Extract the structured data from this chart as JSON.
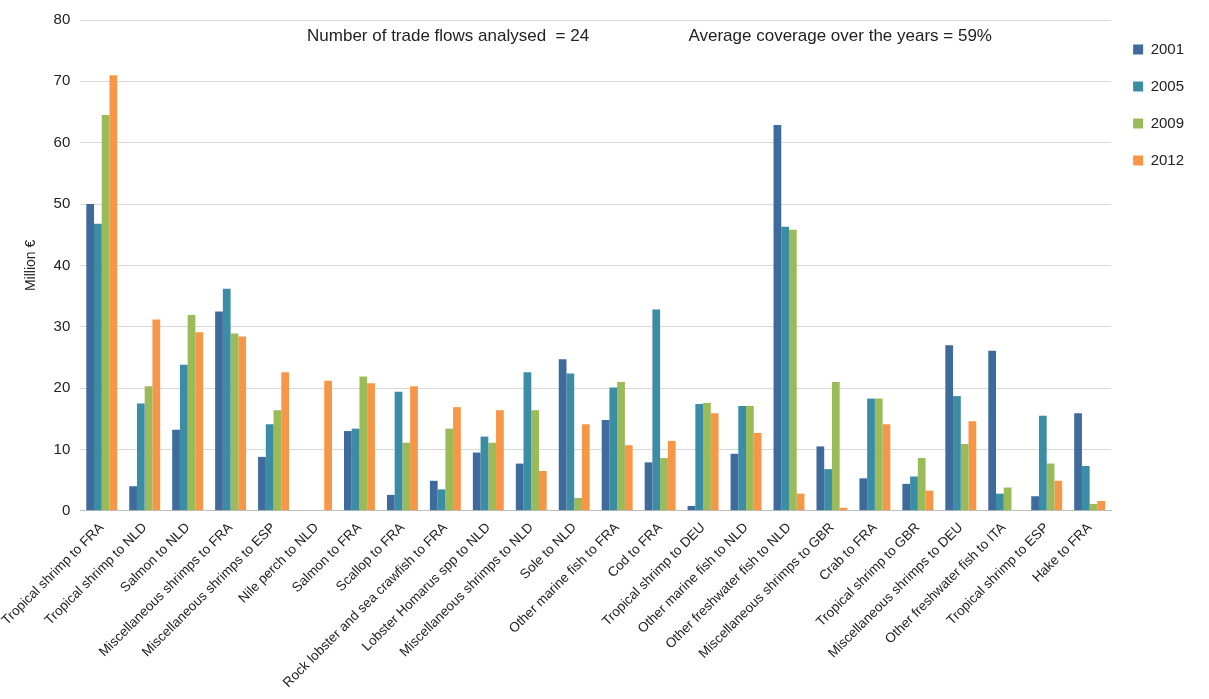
{
  "chart_data": {
    "type": "bar",
    "ylabel": "Million €",
    "annotations": [
      "Number of trade flows analysed  = 24",
      "Average coverage over the years = 59%"
    ],
    "categories": [
      "Tropical shrimp to FRA",
      "Tropical shrimp to NLD",
      "Salmon to NLD",
      "Miscellaneous shrimps to FRA",
      "Miscellaneous shrimps to ESP",
      "Nile perch to NLD",
      "Salmon to FRA",
      "Scallop to FRA",
      "Rock lobster and sea crawfish to FRA",
      "Lobster Homarus spp to NLD",
      "Miscellaneous shrimps to NLD",
      "Sole to NLD",
      "Other marine fish to FRA",
      "Cod to FRA",
      "Tropical shrimp to DEU",
      "Other marine fish to NLD",
      "Other freshwater fish to NLD",
      "Miscellaneous shrimps to GBR",
      "Crab to FRA",
      "Tropical shrimp to GBR",
      "Miscellaneous shrimps to DEU",
      "Other freshwater fish to ITA",
      "Tropical shrimp to ESP",
      "Hake to FRA"
    ],
    "series": [
      {
        "name": "2001",
        "color": "#3f6a9c",
        "values": [
          50,
          4,
          13.2,
          32.5,
          8.8,
          null,
          13,
          2.6,
          4.9,
          9.5,
          7.7,
          24.7,
          14.8,
          7.9,
          0.8,
          9.3,
          62.9,
          10.5,
          5.3,
          4.4,
          27,
          26.1,
          2.4,
          15.9
        ]
      },
      {
        "name": "2005",
        "color": "#3b8ca5",
        "values": [
          46.8,
          17.5,
          23.8,
          36.2,
          14.1,
          null,
          13.4,
          19.4,
          3.5,
          12.1,
          22.6,
          22.4,
          20.1,
          32.8,
          17.4,
          17.1,
          46.3,
          6.8,
          18.3,
          5.6,
          18.7,
          2.8,
          15.5,
          7.3
        ]
      },
      {
        "name": "2009",
        "color": "#9bbb59",
        "values": [
          64.5,
          20.3,
          31.9,
          28.9,
          16.4,
          null,
          21.9,
          11.1,
          13.4,
          11.1,
          16.4,
          2.1,
          21,
          8.6,
          17.6,
          17.1,
          45.8,
          21,
          18.3,
          8.6,
          10.9,
          3.8,
          7.7,
          1.1
        ]
      },
      {
        "name": "2012",
        "color": "#f79646",
        "values": [
          71,
          31.2,
          29.1,
          28.4,
          22.6,
          21.2,
          20.8,
          20.3,
          16.9,
          16.4,
          6.5,
          14.1,
          10.7,
          11.4,
          15.9,
          12.7,
          2.8,
          0.5,
          14.1,
          3.3,
          14.6,
          null,
          4.9,
          1.6
        ]
      }
    ],
    "ylim": [
      0,
      80
    ],
    "yticks": [
      0,
      10,
      20,
      30,
      40,
      50,
      60,
      70,
      80
    ],
    "grid": "y",
    "legend": "top right"
  }
}
